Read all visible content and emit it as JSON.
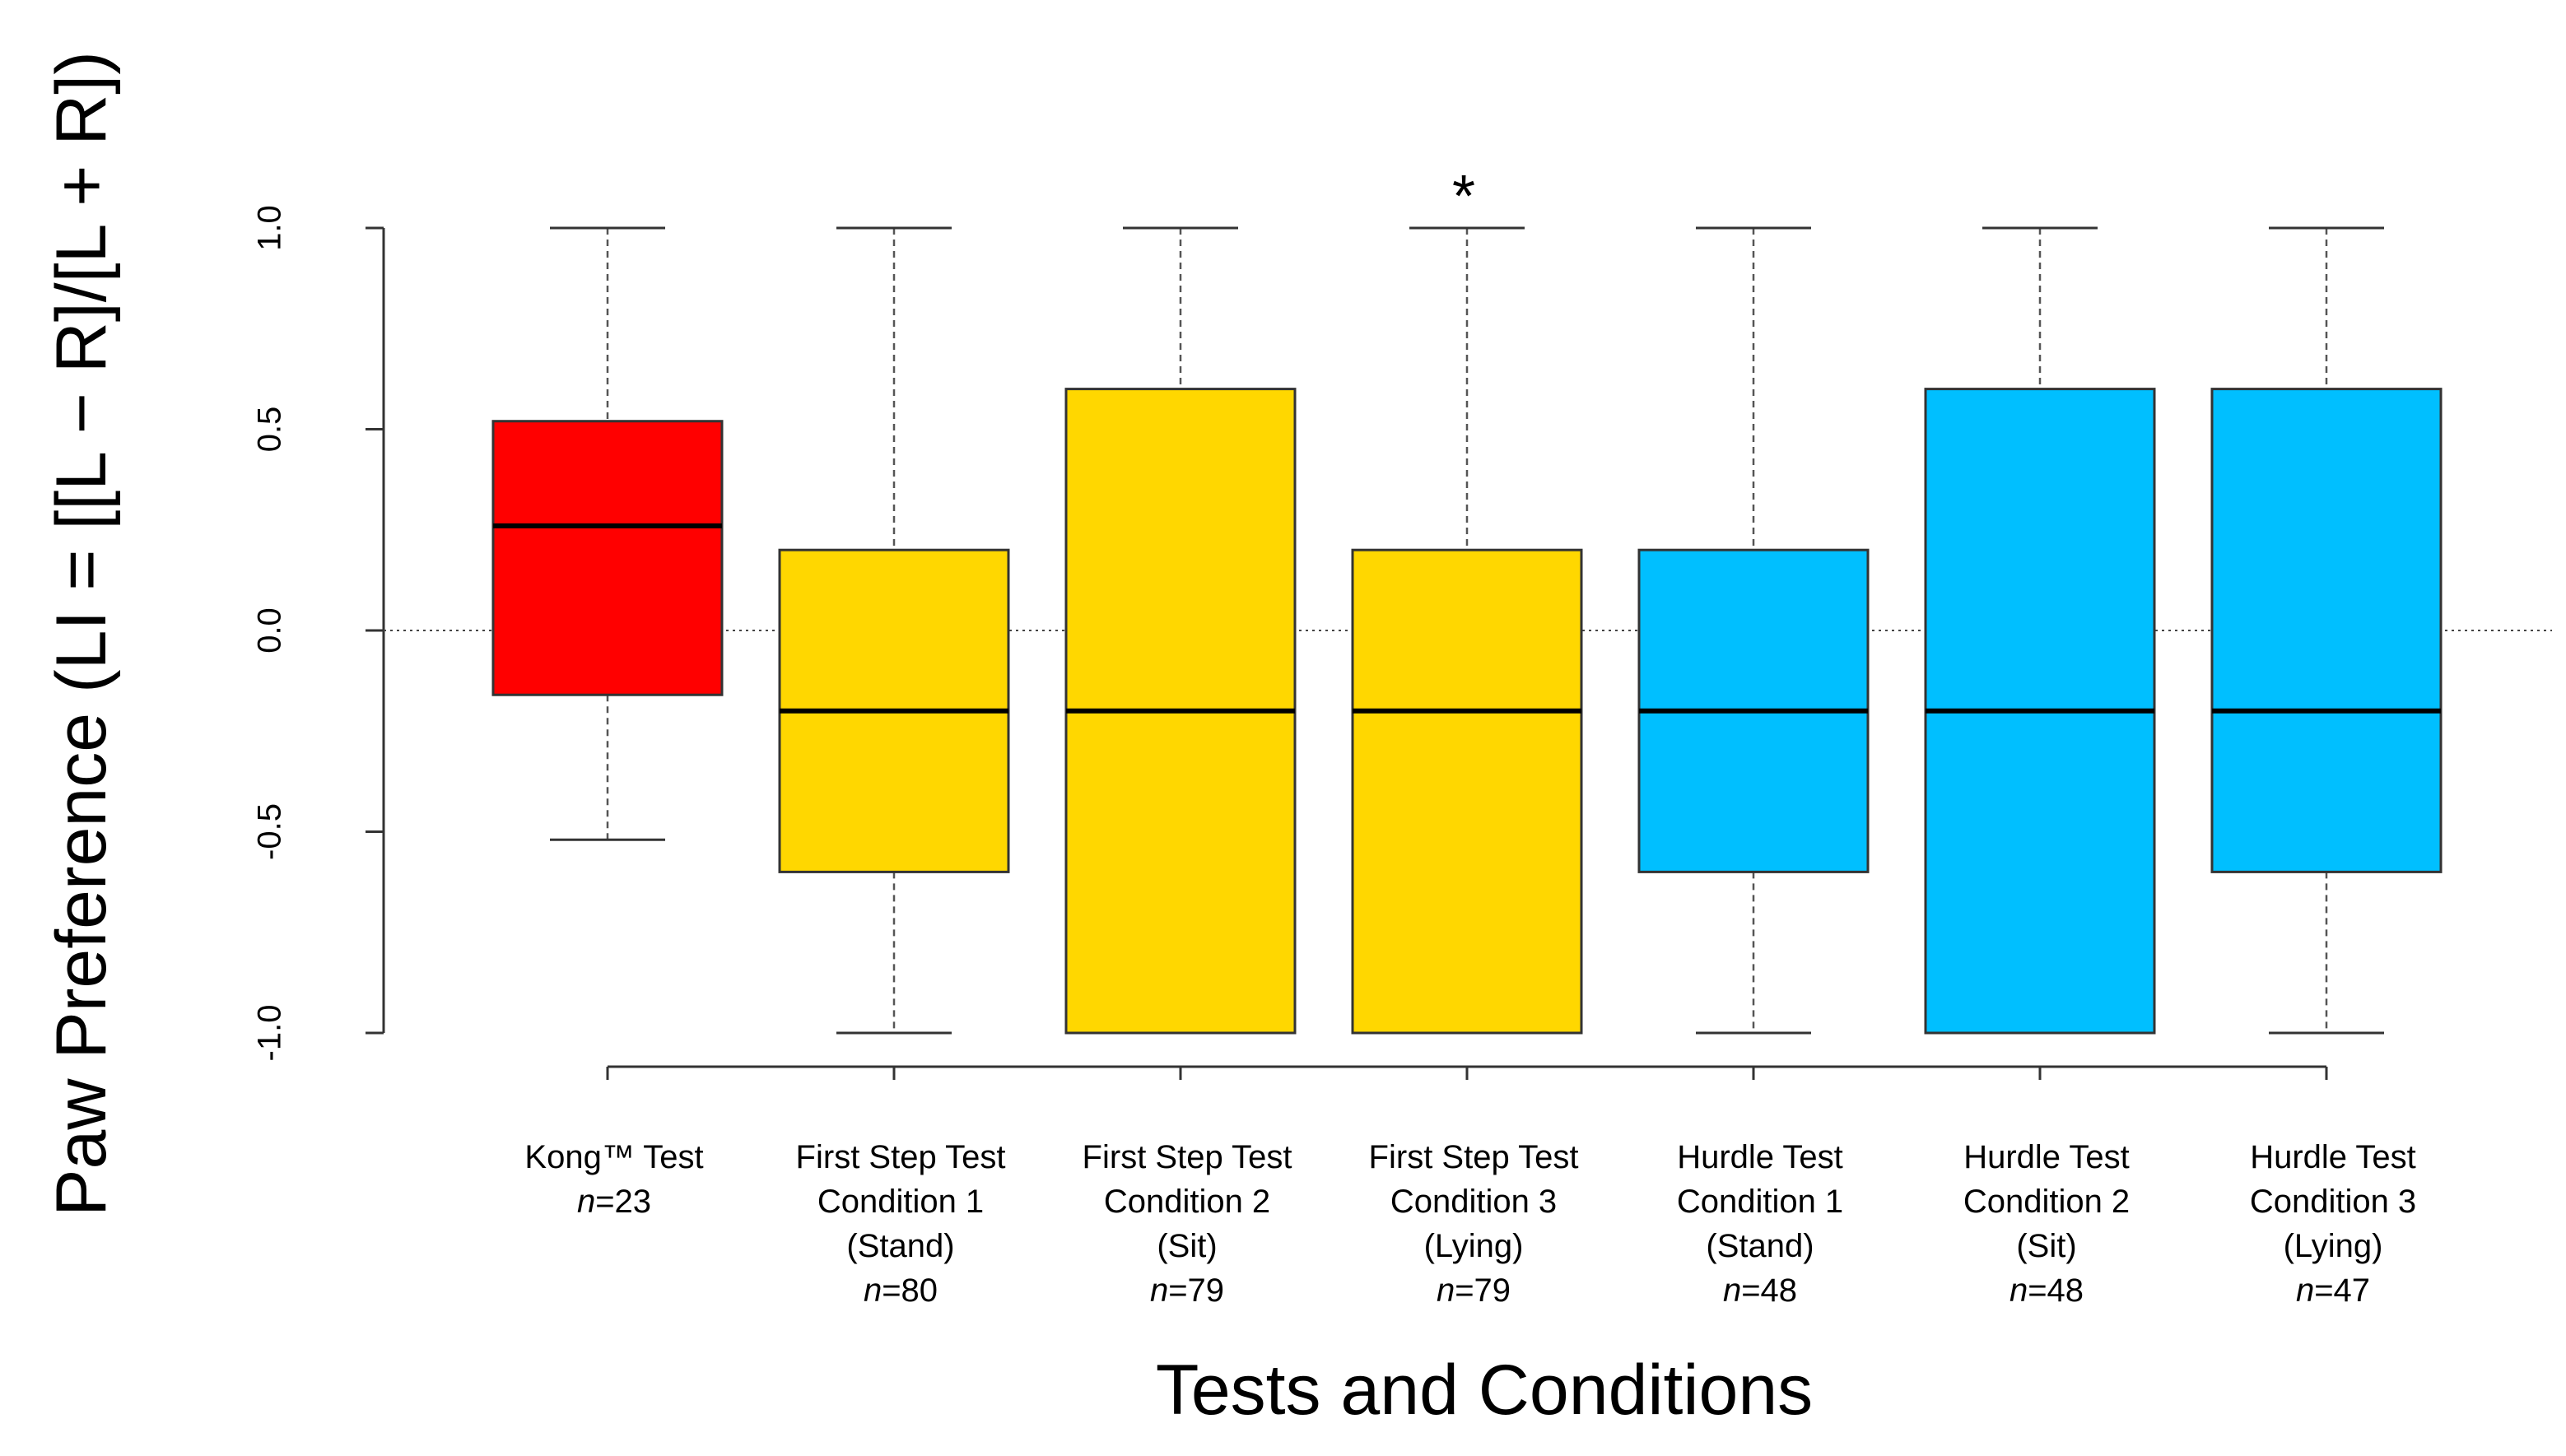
{
  "chart_data": {
    "type": "boxplot",
    "title": "",
    "xlabel": "Tests and Conditions",
    "ylabel": "Paw Preference (LI = [[L − R]/[L + R])",
    "ylim": [
      -1.0,
      1.0
    ],
    "yticks": [
      {
        "value": -1.0,
        "label": "-1.0"
      },
      {
        "value": -0.5,
        "label": "-0.5"
      },
      {
        "value": 0.0,
        "label": "0.0"
      },
      {
        "value": 0.5,
        "label": "0.5"
      },
      {
        "value": 1.0,
        "label": "1.0"
      }
    ],
    "reference_line": {
      "value": 0.0,
      "style": "dotted"
    },
    "categories": [
      {
        "name_lines": [
          "Kong™ Test"
        ],
        "n_prefix": "n",
        "n_value": "=23",
        "color": "#ff0000",
        "whisker_low": -0.52,
        "q1": -0.16,
        "median": 0.26,
        "q3": 0.52,
        "whisker_high": 1.0,
        "annotation": ""
      },
      {
        "name_lines": [
          "First Step Test",
          "Condition 1",
          "(Stand)"
        ],
        "n_prefix": "n",
        "n_value": "=80",
        "color": "#ffd700",
        "whisker_low": -1.0,
        "q1": -0.6,
        "median": -0.2,
        "q3": 0.2,
        "whisker_high": 1.0,
        "annotation": ""
      },
      {
        "name_lines": [
          "First Step Test",
          "Condition 2",
          "(Sit)"
        ],
        "n_prefix": "n",
        "n_value": "=79",
        "color": "#ffd700",
        "whisker_low": -1.0,
        "q1": -1.0,
        "median": -0.2,
        "q3": 0.6,
        "whisker_high": 1.0,
        "annotation": ""
      },
      {
        "name_lines": [
          "First Step Test",
          "Condition 3",
          "(Lying)"
        ],
        "n_prefix": "n",
        "n_value": "=79",
        "color": "#ffd700",
        "whisker_low": -1.0,
        "q1": -1.0,
        "median": -0.2,
        "q3": 0.2,
        "whisker_high": 1.0,
        "annotation": "*"
      },
      {
        "name_lines": [
          "Hurdle Test",
          "Condition 1",
          "(Stand)"
        ],
        "n_prefix": "n",
        "n_value": "=48",
        "color": "#00bfff",
        "whisker_low": -1.0,
        "q1": -0.6,
        "median": -0.2,
        "q3": 0.2,
        "whisker_high": 1.0,
        "annotation": ""
      },
      {
        "name_lines": [
          "Hurdle Test",
          "Condition 2",
          "(Sit)"
        ],
        "n_prefix": "n",
        "n_value": "=48",
        "color": "#00bfff",
        "whisker_low": -1.0,
        "q1": -1.0,
        "median": -0.2,
        "q3": 0.6,
        "whisker_high": 1.0,
        "annotation": ""
      },
      {
        "name_lines": [
          "Hurdle Test",
          "Condition 3",
          "(Lying)"
        ],
        "n_prefix": "n",
        "n_value": "=47",
        "color": "#00bfff",
        "whisker_low": -1.0,
        "q1": -0.6,
        "median": -0.2,
        "q3": 0.6,
        "whisker_high": 1.0,
        "annotation": ""
      }
    ]
  }
}
